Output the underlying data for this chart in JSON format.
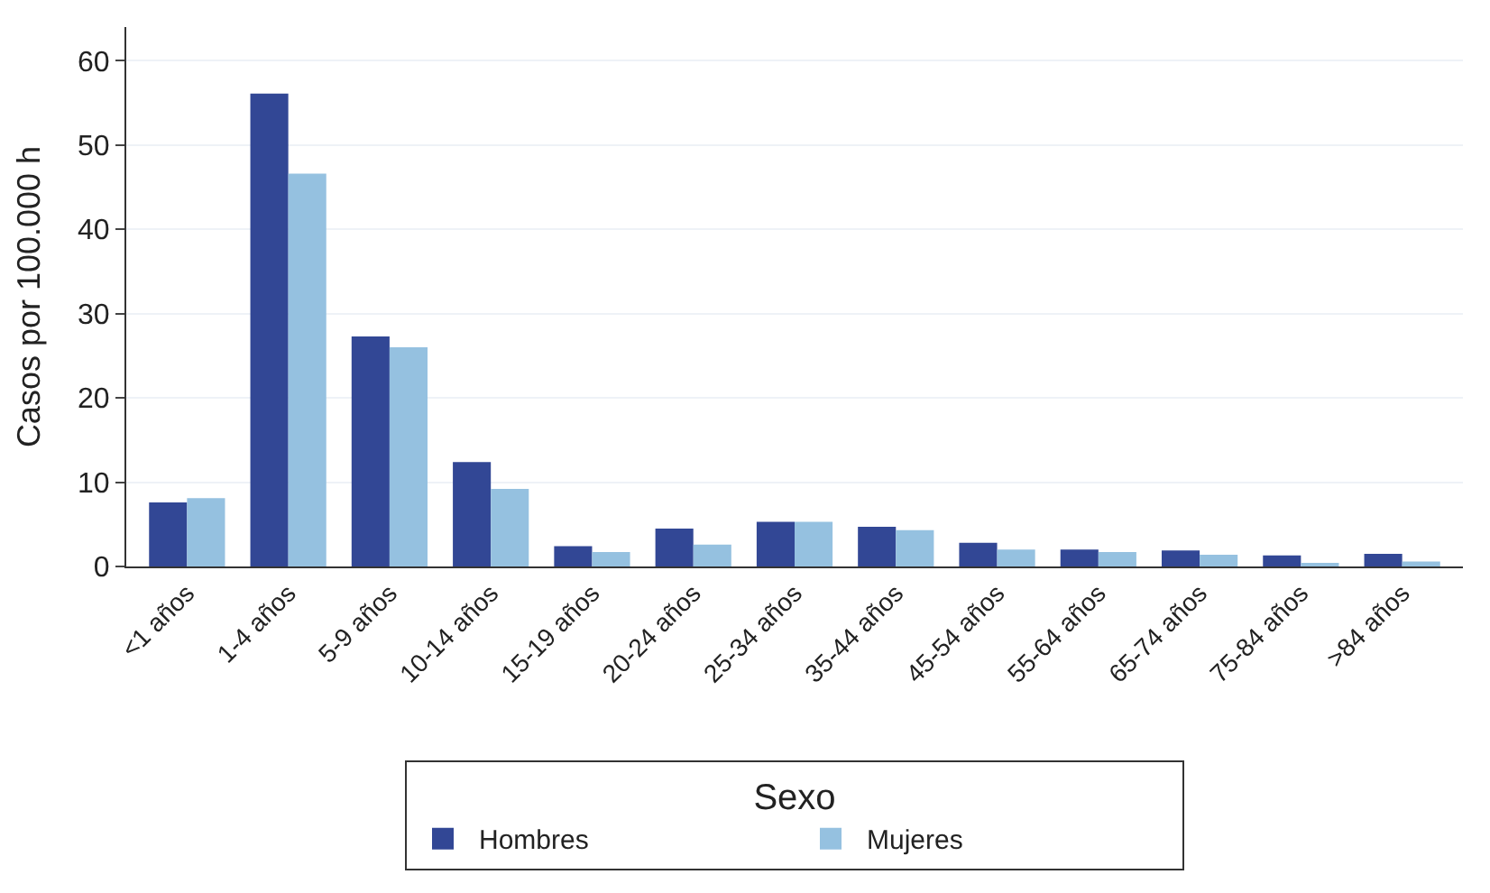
{
  "chart_data": {
    "type": "bar",
    "ylabel": "Casos por 100.000 h",
    "legend_title": "Sexo",
    "categories": [
      "<1 años",
      "1-4 años",
      "5-9 años",
      "10-14 años",
      "15-19 años",
      "20-24 años",
      "25-34 años",
      "35-44 años",
      "45-54 años",
      "55-64 años",
      "65-74 años",
      "75-84 años",
      ">84 años"
    ],
    "series": [
      {
        "name": "Hombres",
        "color": "#324795",
        "values": [
          7.6,
          56.1,
          27.3,
          12.4,
          2.4,
          4.5,
          5.3,
          4.7,
          2.8,
          2.0,
          1.9,
          1.3,
          1.5
        ]
      },
      {
        "name": "Mujeres",
        "color": "#95c1e0",
        "values": [
          8.1,
          46.6,
          26.0,
          9.2,
          1.7,
          2.6,
          5.3,
          4.3,
          2.0,
          1.7,
          1.4,
          0.4,
          0.6
        ]
      }
    ],
    "ylim": [
      0,
      64
    ],
    "yticks": [
      0,
      10,
      20,
      30,
      40,
      50,
      60
    ],
    "grid": "y",
    "legend": "bottom"
  }
}
